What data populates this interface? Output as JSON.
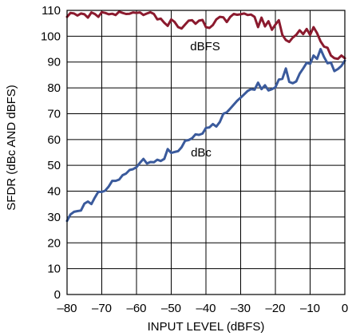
{
  "chart_data": {
    "type": "line",
    "xlabel": "INPUT LEVEL (dBFS)",
    "ylabel": "SFDR (dBc AND dBFS)",
    "xlim": [
      -80,
      0
    ],
    "ylim": [
      0,
      110
    ],
    "x_ticks": [
      "–80",
      "–70",
      "–60",
      "–50",
      "–40",
      "–30",
      "–20",
      "–10",
      "0"
    ],
    "y_ticks": [
      "0",
      "10",
      "20",
      "30",
      "40",
      "50",
      "60",
      "70",
      "80",
      "90",
      "100",
      "110"
    ],
    "grid": true,
    "series": [
      {
        "name": "dBFS",
        "color": "#8b1a2e",
        "points": [
          [
            -80,
            107.5
          ],
          [
            -79,
            109
          ],
          [
            -78,
            108.8
          ],
          [
            -77,
            108
          ],
          [
            -76,
            108.8
          ],
          [
            -75,
            108.5
          ],
          [
            -74,
            107.2
          ],
          [
            -73,
            109.2
          ],
          [
            -72,
            108.6
          ],
          [
            -71,
            107.5
          ],
          [
            -70,
            109.3
          ],
          [
            -69,
            109
          ],
          [
            -68,
            108.5
          ],
          [
            -67,
            108.7
          ],
          [
            -66,
            108.2
          ],
          [
            -65,
            109.5
          ],
          [
            -64,
            109
          ],
          [
            -63,
            108.6
          ],
          [
            -62,
            108.7
          ],
          [
            -61,
            109.2
          ],
          [
            -60,
            109
          ],
          [
            -59,
            109.2
          ],
          [
            -58,
            108.2
          ],
          [
            -57,
            108.8
          ],
          [
            -56,
            109.3
          ],
          [
            -55,
            108.6
          ],
          [
            -54,
            106.5
          ],
          [
            -53,
            106.8
          ],
          [
            -52,
            105.2
          ],
          [
            -51,
            104
          ],
          [
            -50,
            106.5
          ],
          [
            -49,
            105.5
          ],
          [
            -48,
            103.5
          ],
          [
            -47,
            103
          ],
          [
            -46,
            104.5
          ],
          [
            -45,
            106
          ],
          [
            -44,
            106.2
          ],
          [
            -43,
            104.8
          ],
          [
            -42,
            106
          ],
          [
            -41,
            106.3
          ],
          [
            -40,
            103.5
          ],
          [
            -39,
            103.2
          ],
          [
            -38,
            104.3
          ],
          [
            -37,
            106.5
          ],
          [
            -36,
            107.5
          ],
          [
            -35,
            107.3
          ],
          [
            -34,
            105.5
          ],
          [
            -33,
            107.5
          ],
          [
            -32,
            108.6
          ],
          [
            -31,
            108.3
          ],
          [
            -30,
            108.5
          ],
          [
            -29,
            108.8
          ],
          [
            -28,
            108.2
          ],
          [
            -27,
            108.4
          ],
          [
            -26,
            107.5
          ],
          [
            -25,
            103.5
          ],
          [
            -24,
            107.2
          ],
          [
            -23,
            103.8
          ],
          [
            -22,
            105.8
          ],
          [
            -21,
            102.5
          ],
          [
            -20,
            104.5
          ],
          [
            -19,
            106.2
          ],
          [
            -18,
            100.5
          ],
          [
            -17,
            98.5
          ],
          [
            -16,
            97.8
          ],
          [
            -15,
            99.5
          ],
          [
            -14,
            100.5
          ],
          [
            -13,
            102.3
          ],
          [
            -12,
            100.8
          ],
          [
            -11,
            102.8
          ],
          [
            -10,
            100.5
          ],
          [
            -9,
            103.5
          ],
          [
            -8,
            101.2
          ],
          [
            -7,
            98
          ],
          [
            -6,
            96
          ],
          [
            -5,
            95.5
          ],
          [
            -4,
            92.5
          ],
          [
            -3,
            91.5
          ],
          [
            -2,
            91.2
          ],
          [
            -1,
            92.5
          ],
          [
            0,
            91.5
          ]
        ]
      },
      {
        "name": "dBc",
        "color": "#3a5a9c",
        "points": [
          [
            -80,
            28.5
          ],
          [
            -79,
            31
          ],
          [
            -78,
            32
          ],
          [
            -77,
            32.3
          ],
          [
            -76,
            32.5
          ],
          [
            -75,
            35.2
          ],
          [
            -74,
            36
          ],
          [
            -73,
            35
          ],
          [
            -72,
            37.5
          ],
          [
            -71,
            39.8
          ],
          [
            -70,
            39.7
          ],
          [
            -69,
            40.2
          ],
          [
            -68,
            41.8
          ],
          [
            -67,
            44
          ],
          [
            -66,
            44
          ],
          [
            -65,
            44.5
          ],
          [
            -64,
            46.2
          ],
          [
            -63,
            46.8
          ],
          [
            -62,
            48.2
          ],
          [
            -61,
            48.5
          ],
          [
            -60,
            49.3
          ],
          [
            -59,
            51
          ],
          [
            -58,
            52.5
          ],
          [
            -57,
            50.7
          ],
          [
            -56,
            51.3
          ],
          [
            -55,
            51.2
          ],
          [
            -54,
            52.2
          ],
          [
            -53,
            51.7
          ],
          [
            -52,
            52.5
          ],
          [
            -51,
            56.3
          ],
          [
            -50,
            54.8
          ],
          [
            -49,
            55.2
          ],
          [
            -48,
            55.5
          ],
          [
            -47,
            57
          ],
          [
            -46,
            59.5
          ],
          [
            -45,
            59.8
          ],
          [
            -44,
            60.5
          ],
          [
            -43,
            62
          ],
          [
            -42,
            61.8
          ],
          [
            -41,
            62.3
          ],
          [
            -40,
            64.5
          ],
          [
            -39,
            64.7
          ],
          [
            -38,
            66
          ],
          [
            -37,
            65
          ],
          [
            -36,
            66.8
          ],
          [
            -35,
            70
          ],
          [
            -34,
            70.5
          ],
          [
            -33,
            72
          ],
          [
            -32,
            73.5
          ],
          [
            -31,
            75
          ],
          [
            -30,
            76.2
          ],
          [
            -29,
            77.5
          ],
          [
            -28,
            78.8
          ],
          [
            -27,
            79.5
          ],
          [
            -26,
            79.3
          ],
          [
            -25,
            82
          ],
          [
            -24,
            79.5
          ],
          [
            -23,
            81
          ],
          [
            -22,
            79
          ],
          [
            -21,
            79.5
          ],
          [
            -20,
            80.2
          ],
          [
            -19,
            83.2
          ],
          [
            -18,
            83.5
          ],
          [
            -17,
            87.5
          ],
          [
            -16,
            82.3
          ],
          [
            -15,
            81.8
          ],
          [
            -14,
            82.5
          ],
          [
            -13,
            85.5
          ],
          [
            -12,
            87.5
          ],
          [
            -11,
            89.7
          ],
          [
            -10,
            89.3
          ],
          [
            -9,
            92.5
          ],
          [
            -8,
            91.2
          ],
          [
            -7,
            95
          ],
          [
            -6,
            92
          ],
          [
            -5,
            89.5
          ],
          [
            -4,
            89.8
          ],
          [
            -3,
            86.5
          ],
          [
            -2,
            87.3
          ],
          [
            -1,
            88.5
          ],
          [
            0,
            90.5
          ]
        ]
      }
    ]
  }
}
